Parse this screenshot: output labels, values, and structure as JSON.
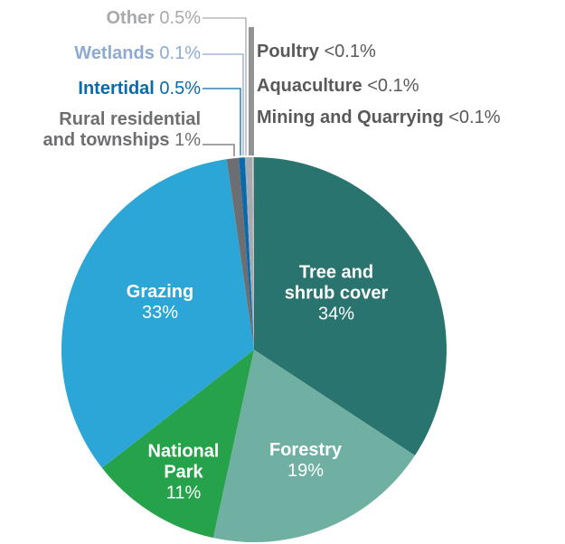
{
  "chart_data": {
    "type": "pie",
    "categories": [
      "Tree and shrub cover",
      "Forestry",
      "National Park",
      "Grazing",
      "Rural residential and townships",
      "Intertidal",
      "Wetlands",
      "Other",
      "Poultry",
      "Aquaculture",
      "Mining and Quarrying"
    ],
    "values": [
      34,
      19,
      11,
      33,
      1,
      0.5,
      0.1,
      0.5,
      0.05,
      0.05,
      0.05
    ],
    "value_labels": [
      "34%",
      "19%",
      "11%",
      "33%",
      "1%",
      "0.5%",
      "0.1%",
      "0.5%",
      "<0.1%",
      "<0.1%",
      "<0.1%"
    ],
    "colors": [
      "#2a7470",
      "#6fb0a2",
      "#26a34a",
      "#2ba6d6",
      "#6d6e71",
      "#0b6aa8",
      "#8eaad0",
      "#a7a9ac",
      "#bcbec0",
      "#d1d3d4",
      "#939598"
    ]
  }
}
